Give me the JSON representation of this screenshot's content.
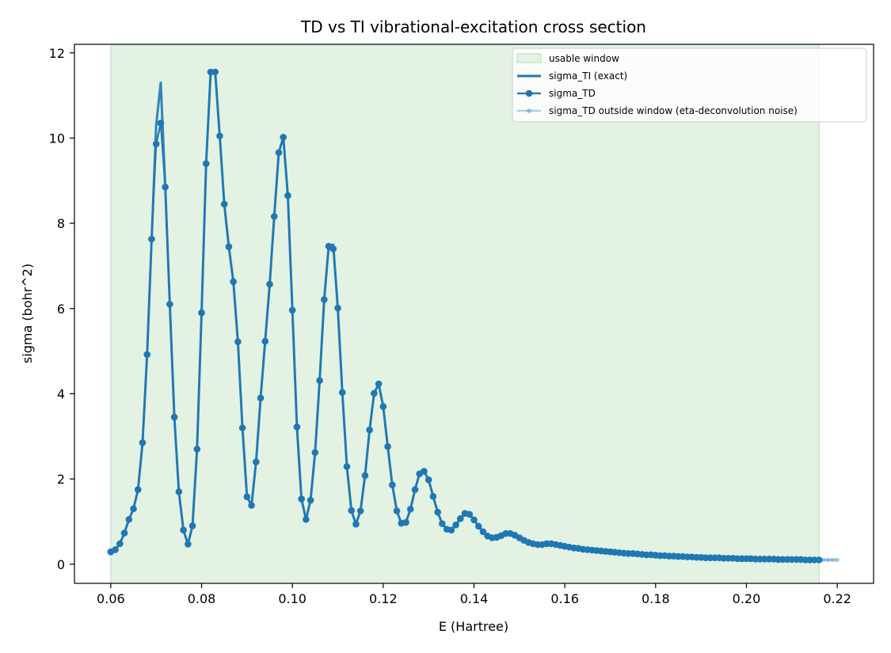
{
  "chart_data": {
    "type": "line",
    "title": "TD vs TI vibrational-excitation cross section",
    "xlabel": "E (Hartree)",
    "ylabel": "sigma (bohr^2)",
    "xlim": [
      0.052,
      0.228
    ],
    "ylim": [
      -0.45,
      12.2
    ],
    "xticks": [
      0.06,
      0.08,
      0.1,
      0.12,
      0.14,
      0.16,
      0.18,
      0.2,
      0.22
    ],
    "xtick_labels": [
      "0.06",
      "0.08",
      "0.10",
      "0.12",
      "0.14",
      "0.16",
      "0.18",
      "0.20",
      "0.22"
    ],
    "yticks": [
      0,
      2,
      4,
      6,
      8,
      10,
      12
    ],
    "ytick_labels": [
      "0",
      "2",
      "4",
      "6",
      "8",
      "10",
      "12"
    ],
    "grid": false,
    "legend_position": "top-right",
    "usable_window": {
      "name": "usable window",
      "x_range": [
        0.06,
        0.216
      ],
      "color": "#2ca02c"
    },
    "colors": {
      "main": "#1f77b4",
      "window_fill": "#e3f2e3",
      "window_edge": "#b5dcb5"
    },
    "series": [
      {
        "name": "sigma_TI (exact)",
        "style": "line",
        "x": [
          0.06,
          0.061,
          0.062,
          0.063,
          0.064,
          0.065,
          0.066,
          0.067,
          0.068,
          0.069,
          0.07,
          0.071,
          0.072,
          0.073,
          0.074,
          0.075,
          0.076,
          0.077,
          0.078,
          0.079,
          0.08,
          0.081,
          0.082,
          0.083,
          0.084,
          0.085,
          0.086,
          0.087,
          0.088,
          0.089,
          0.09,
          0.091,
          0.092,
          0.093,
          0.094,
          0.095,
          0.096,
          0.097,
          0.098,
          0.099,
          0.1,
          0.101,
          0.102,
          0.103,
          0.104,
          0.105,
          0.106,
          0.107,
          0.108,
          0.109,
          0.11,
          0.111,
          0.112,
          0.113,
          0.114,
          0.115,
          0.116,
          0.117,
          0.118,
          0.119,
          0.12,
          0.121,
          0.122,
          0.123,
          0.124,
          0.125,
          0.126,
          0.127,
          0.128,
          0.129,
          0.13,
          0.131,
          0.132,
          0.133,
          0.134,
          0.135,
          0.136,
          0.137,
          0.138,
          0.139,
          0.14,
          0.141,
          0.142,
          0.143,
          0.144,
          0.145,
          0.146,
          0.147,
          0.148,
          0.149,
          0.15,
          0.152,
          0.154,
          0.156,
          0.158,
          0.16,
          0.162,
          0.164,
          0.166,
          0.168,
          0.17,
          0.172,
          0.174,
          0.176,
          0.178,
          0.18,
          0.182,
          0.184,
          0.186,
          0.188,
          0.19,
          0.192,
          0.194,
          0.196,
          0.198,
          0.2,
          0.202,
          0.204,
          0.206,
          0.208,
          0.21,
          0.212,
          0.214,
          0.216
        ],
        "y": [
          0.29,
          0.34,
          0.48,
          0.73,
          1.05,
          1.3,
          1.75,
          2.85,
          4.92,
          7.63,
          10.3,
          11.3,
          8.85,
          6.1,
          3.45,
          1.7,
          0.8,
          0.47,
          0.9,
          2.7,
          5.9,
          9.4,
          11.55,
          11.55,
          10.05,
          8.45,
          7.45,
          6.63,
          5.22,
          3.2,
          1.58,
          1.38,
          2.4,
          3.9,
          5.23,
          6.57,
          8.16,
          9.66,
          10.02,
          8.65,
          5.96,
          3.22,
          1.53,
          1.05,
          1.5,
          2.62,
          4.31,
          6.21,
          7.46,
          7.5,
          6.01,
          4.03,
          2.29,
          1.26,
          0.94,
          1.25,
          2.08,
          3.15,
          4.01,
          4.23,
          3.7,
          2.76,
          1.86,
          1.25,
          0.96,
          0.98,
          1.29,
          1.75,
          2.12,
          2.18,
          1.98,
          1.59,
          1.22,
          0.95,
          0.82,
          0.8,
          0.92,
          1.07,
          1.19,
          1.17,
          1.04,
          0.89,
          0.76,
          0.66,
          0.62,
          0.63,
          0.67,
          0.72,
          0.72,
          0.68,
          0.62,
          0.51,
          0.46,
          0.48,
          0.46,
          0.42,
          0.38,
          0.35,
          0.33,
          0.31,
          0.29,
          0.27,
          0.25,
          0.24,
          0.22,
          0.21,
          0.2,
          0.19,
          0.18,
          0.17,
          0.16,
          0.15,
          0.15,
          0.14,
          0.13,
          0.13,
          0.12,
          0.12,
          0.11,
          0.11,
          0.11,
          0.1,
          0.1,
          0.1
        ]
      },
      {
        "name": "sigma_TD",
        "style": "line-markers",
        "x": [
          0.06,
          0.061,
          0.062,
          0.063,
          0.064,
          0.065,
          0.066,
          0.067,
          0.068,
          0.069,
          0.07,
          0.071,
          0.072,
          0.073,
          0.074,
          0.075,
          0.076,
          0.077,
          0.078,
          0.079,
          0.08,
          0.081,
          0.082,
          0.083,
          0.084,
          0.085,
          0.086,
          0.087,
          0.088,
          0.089,
          0.09,
          0.091,
          0.092,
          0.093,
          0.094,
          0.095,
          0.096,
          0.097,
          0.098,
          0.099,
          0.1,
          0.101,
          0.102,
          0.103,
          0.104,
          0.105,
          0.106,
          0.107,
          0.108,
          0.109,
          0.11,
          0.111,
          0.112,
          0.113,
          0.114,
          0.115,
          0.116,
          0.117,
          0.118,
          0.119,
          0.12,
          0.121,
          0.122,
          0.123,
          0.124,
          0.125,
          0.126,
          0.127,
          0.128,
          0.129,
          0.13,
          0.131,
          0.132,
          0.133,
          0.134,
          0.135,
          0.136,
          0.137,
          0.138,
          0.139,
          0.14,
          0.141,
          0.142,
          0.143,
          0.144,
          0.145,
          0.146,
          0.147,
          0.148,
          0.149,
          0.15,
          0.151,
          0.152,
          0.153,
          0.154,
          0.155,
          0.156,
          0.157,
          0.158,
          0.159,
          0.16,
          0.161,
          0.162,
          0.163,
          0.164,
          0.165,
          0.166,
          0.167,
          0.168,
          0.169,
          0.17,
          0.171,
          0.172,
          0.173,
          0.174,
          0.175,
          0.176,
          0.177,
          0.178,
          0.179,
          0.18,
          0.181,
          0.182,
          0.183,
          0.184,
          0.185,
          0.186,
          0.187,
          0.188,
          0.189,
          0.19,
          0.191,
          0.192,
          0.193,
          0.194,
          0.195,
          0.196,
          0.197,
          0.198,
          0.199,
          0.2,
          0.201,
          0.202,
          0.203,
          0.204,
          0.205,
          0.206,
          0.207,
          0.208,
          0.209,
          0.21,
          0.211,
          0.212,
          0.213,
          0.214,
          0.215,
          0.216
        ],
        "y": [
          0.29,
          0.34,
          0.48,
          0.73,
          1.05,
          1.3,
          1.75,
          2.85,
          4.92,
          7.63,
          9.86,
          10.35,
          8.85,
          6.1,
          3.45,
          1.7,
          0.8,
          0.47,
          0.9,
          2.7,
          5.9,
          9.4,
          11.55,
          11.55,
          10.05,
          8.45,
          7.45,
          6.63,
          5.22,
          3.2,
          1.58,
          1.38,
          2.4,
          3.9,
          5.23,
          6.57,
          8.16,
          9.66,
          10.02,
          8.65,
          5.96,
          3.22,
          1.53,
          1.05,
          1.5,
          2.62,
          4.31,
          6.21,
          7.46,
          7.4,
          6.01,
          4.03,
          2.29,
          1.26,
          0.94,
          1.25,
          2.08,
          3.15,
          4.01,
          4.23,
          3.7,
          2.76,
          1.86,
          1.25,
          0.96,
          0.98,
          1.29,
          1.75,
          2.12,
          2.18,
          1.98,
          1.59,
          1.22,
          0.95,
          0.82,
          0.8,
          0.92,
          1.07,
          1.19,
          1.17,
          1.04,
          0.89,
          0.76,
          0.66,
          0.62,
          0.63,
          0.67,
          0.72,
          0.72,
          0.68,
          0.62,
          0.56,
          0.51,
          0.48,
          0.46,
          0.46,
          0.48,
          0.48,
          0.46,
          0.44,
          0.42,
          0.4,
          0.38,
          0.37,
          0.35,
          0.34,
          0.33,
          0.32,
          0.31,
          0.3,
          0.29,
          0.28,
          0.27,
          0.26,
          0.25,
          0.25,
          0.24,
          0.23,
          0.22,
          0.22,
          0.21,
          0.2,
          0.2,
          0.19,
          0.19,
          0.18,
          0.18,
          0.17,
          0.17,
          0.16,
          0.16,
          0.15,
          0.15,
          0.15,
          0.15,
          0.14,
          0.14,
          0.14,
          0.13,
          0.13,
          0.13,
          0.13,
          0.12,
          0.12,
          0.12,
          0.12,
          0.12,
          0.11,
          0.11,
          0.11,
          0.11,
          0.11,
          0.11,
          0.1,
          0.1,
          0.1,
          0.1
        ]
      },
      {
        "name": "sigma_TD outside window (eta-deconvolution noise)",
        "style": "faded-line-markers",
        "x": [
          0.216,
          0.217,
          0.218,
          0.219,
          0.22
        ],
        "y": [
          0.1,
          0.1,
          0.1,
          0.1,
          0.1
        ]
      }
    ]
  }
}
